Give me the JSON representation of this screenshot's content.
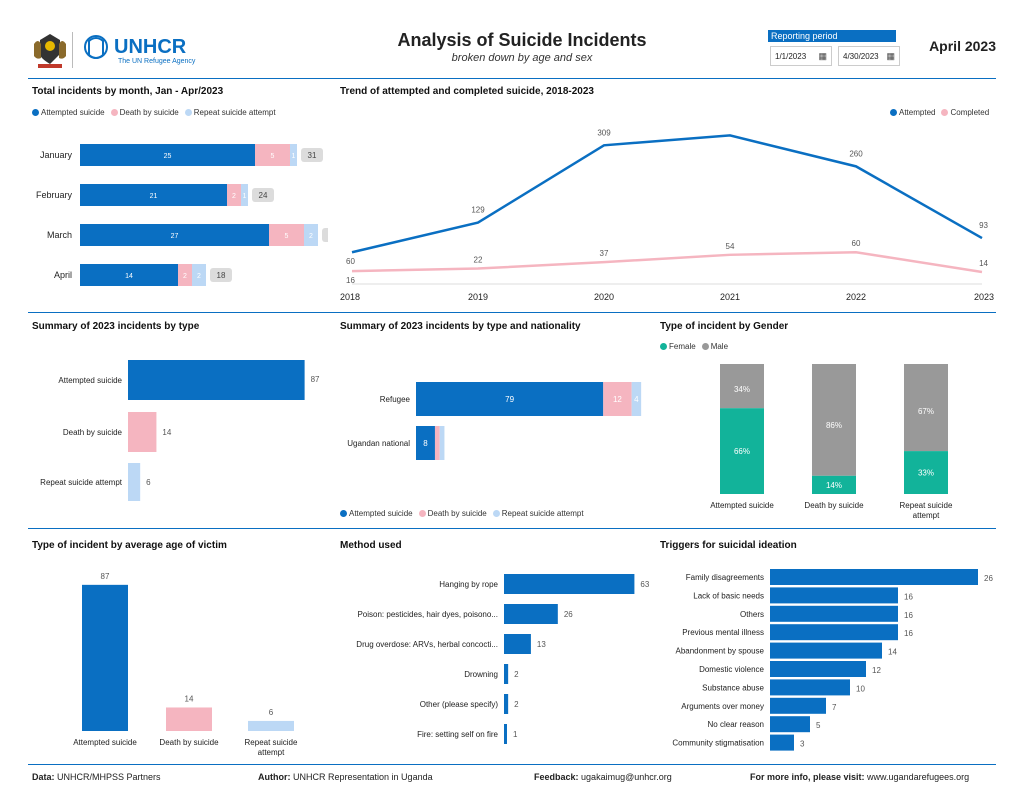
{
  "header": {
    "org_name": "UNHCR",
    "org_tagline": "The UN Refugee Agency",
    "title": "Analysis of Suicide Incidents",
    "subtitle": "broken down by age and sex",
    "reporting_label": "Reporting period",
    "start_date": "1/1/2023",
    "end_date": "4/30/2023",
    "period": "April 2023"
  },
  "colors": {
    "attempted": "#0a6fc2",
    "death": "#f5b5c0",
    "repeat": "#bcd8f5",
    "total_badge": "#dcdcdc",
    "female": "#12b39a",
    "male": "#999999",
    "completed_line": "#f5b5c0"
  },
  "sections": {
    "monthly": "Total incidents by month, Jan - Apr/2023",
    "trend": "Trend of attempted and completed suicide, 2018-2023",
    "by_type": "Summary of 2023 incidents by type",
    "by_nationality": "Summary of 2023 incidents by type and nationality",
    "by_gender": "Type of incident by Gender",
    "by_age": "Type of incident by average age of victim",
    "method": "Method used",
    "triggers": "Triggers for suicidal ideation"
  },
  "legend": {
    "attempted": "Attempted suicide",
    "death": "Death by suicide",
    "repeat": "Repeat suicide attempt",
    "attempted_short": "Attempted",
    "completed": "Completed",
    "female": "Female",
    "male": "Male"
  },
  "chart_data": [
    {
      "id": "monthly",
      "type": "bar",
      "orientation": "horizontal",
      "stacked": true,
      "categories": [
        "January",
        "February",
        "March",
        "April"
      ],
      "series": [
        {
          "name": "Attempted suicide",
          "values": [
            25,
            21,
            27,
            14
          ]
        },
        {
          "name": "Death by suicide",
          "values": [
            5,
            2,
            5,
            2
          ]
        },
        {
          "name": "Repeat suicide attempt",
          "values": [
            1,
            1,
            2,
            2
          ]
        }
      ],
      "totals": [
        31,
        24,
        34,
        18
      ]
    },
    {
      "id": "trend",
      "type": "line",
      "x": [
        "2018",
        "2019",
        "2020",
        "2021",
        "2022",
        "2023"
      ],
      "series": [
        {
          "name": "Attempted",
          "values": [
            60,
            129,
            309,
            332,
            260,
            93
          ]
        },
        {
          "name": "Completed",
          "values": [
            16,
            22,
            37,
            54,
            60,
            14
          ]
        }
      ],
      "legend_position": "top-right"
    },
    {
      "id": "by_type",
      "type": "bar",
      "orientation": "horizontal",
      "categories": [
        "Attempted suicide",
        "Death by suicide",
        "Repeat suicide attempt"
      ],
      "values": [
        87,
        14,
        6
      ]
    },
    {
      "id": "by_nationality",
      "type": "bar",
      "orientation": "horizontal",
      "stacked": true,
      "categories": [
        "Refugee",
        "Ugandan national"
      ],
      "series": [
        {
          "name": "Attempted suicide",
          "values": [
            79,
            8
          ]
        },
        {
          "name": "Death by suicide",
          "values": [
            12,
            2
          ]
        },
        {
          "name": "Repeat suicide attempt",
          "values": [
            4,
            2
          ]
        }
      ],
      "value_labels": [
        [
          "79",
          "12",
          "4"
        ],
        [
          "8",
          "",
          ""
        ]
      ]
    },
    {
      "id": "by_gender",
      "type": "bar",
      "stacked": true,
      "percent": true,
      "categories": [
        "Attempted suicide",
        "Death by suicide",
        "Repeat suicide attempt"
      ],
      "series": [
        {
          "name": "Female",
          "values": [
            66,
            14,
            33
          ],
          "labels": [
            "66%",
            "14%",
            "33%"
          ]
        },
        {
          "name": "Male",
          "values": [
            34,
            86,
            67
          ],
          "labels": [
            "34%",
            "86%",
            "67%"
          ]
        }
      ],
      "legend_position": "top-left"
    },
    {
      "id": "by_age",
      "type": "bar",
      "categories": [
        "Attempted suicide",
        "Death by suicide",
        "Repeat suicide attempt"
      ],
      "values": [
        87,
        14,
        6
      ]
    },
    {
      "id": "method",
      "type": "bar",
      "orientation": "horizontal",
      "categories": [
        "Hanging by rope",
        "Poison: pesticides, hair dyes, poisono...",
        "Drug overdose: ARVs, herbal concocti...",
        "Drowning",
        "Other (please specify)",
        "Fire: setting self on fire"
      ],
      "values": [
        63,
        26,
        13,
        2,
        2,
        1
      ]
    },
    {
      "id": "triggers",
      "type": "bar",
      "orientation": "horizontal",
      "categories": [
        "Family disagreements",
        "Lack of basic needs",
        "Others",
        "Previous mental illness",
        "Abandonment by spouse",
        "Domestic violence",
        "Substance abuse",
        "Arguments over money",
        "No clear reason",
        "Community stigmatisation"
      ],
      "values": [
        26,
        16,
        16,
        16,
        14,
        12,
        10,
        7,
        5,
        3
      ]
    }
  ],
  "footer": {
    "data_label": "Data:",
    "data_value": "UNHCR/MHPSS Partners",
    "author_label": "Author:",
    "author_value": "UNHCR Representation in Uganda",
    "feedback_label": "Feedback:",
    "feedback_value": "ugakaimug@unhcr.org",
    "info_label": "For more info, please visit:",
    "info_value": "www.ugandarefugees.org"
  }
}
